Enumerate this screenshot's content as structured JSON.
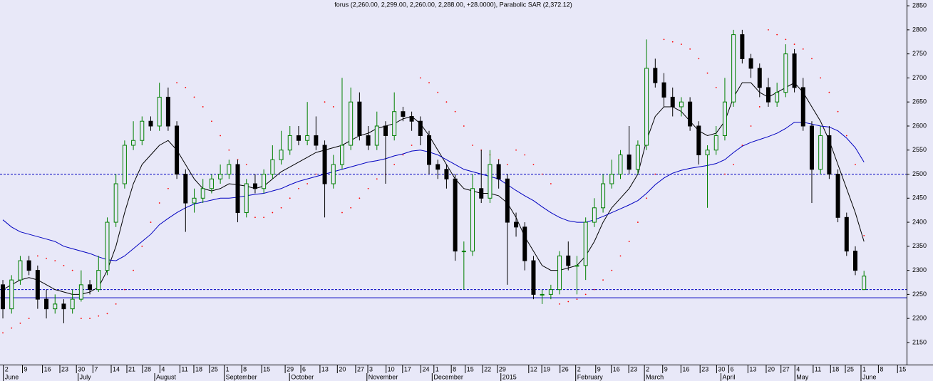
{
  "chart_data": {
    "type": "candlestick",
    "title": "forus (2,260.00, 2,299.00, 2,260.00, 2,288.00, +28.0000), Parabolic SAR (2,372.12)",
    "up_color": "#008000",
    "down_color": "#000000",
    "background": "#e8e8f8",
    "open": [
      2270,
      2220,
      2280,
      2320,
      2300,
      2240,
      2220,
      2230,
      2220,
      2240,
      2270,
      2260,
      2300,
      2400,
      2480,
      2560,
      2570,
      2610,
      2600,
      2660,
      2600,
      2500,
      2440,
      2450,
      2470,
      2490,
      2500,
      2520,
      2420,
      2480,
      2470,
      2500,
      2530,
      2550,
      2580,
      2570,
      2580,
      2560,
      2480,
      2520,
      2560,
      2650,
      2580,
      2560,
      2600,
      2580,
      2630,
      2620,
      2610,
      2580,
      2520,
      2510,
      2490,
      2340,
      2340,
      2470,
      2450,
      2520,
      2490,
      2400,
      2390,
      2320,
      2250,
      2250,
      2260,
      2330,
      2310,
      2310,
      2400,
      2430,
      2480,
      2500,
      2540,
      2510,
      2560,
      2720,
      2690,
      2660,
      2640,
      2650,
      2600,
      2540,
      2550,
      2580,
      2650,
      2790,
      2740,
      2720,
      2680,
      2650,
      2670,
      2750,
      2680,
      2600,
      2510,
      2580,
      2500,
      2410,
      2340,
      2260
    ],
    "high": [
      2280,
      2290,
      2330,
      2330,
      2310,
      2260,
      2250,
      2240,
      2260,
      2300,
      2280,
      2330,
      2410,
      2500,
      2570,
      2610,
      2620,
      2620,
      2690,
      2680,
      2610,
      2510,
      2470,
      2490,
      2500,
      2520,
      2530,
      2530,
      2490,
      2500,
      2510,
      2560,
      2590,
      2600,
      2600,
      2650,
      2620,
      2570,
      2540,
      2700,
      2680,
      2670,
      2600,
      2630,
      2610,
      2670,
      2640,
      2630,
      2620,
      2590,
      2530,
      2520,
      2500,
      2360,
      2500,
      2550,
      2550,
      2530,
      2500,
      2420,
      2400,
      2330,
      2260,
      2270,
      2340,
      2360,
      2330,
      2410,
      2450,
      2500,
      2530,
      2550,
      2600,
      2570,
      2780,
      2740,
      2710,
      2680,
      2660,
      2660,
      2610,
      2560,
      2600,
      2700,
      2800,
      2800,
      2750,
      2730,
      2700,
      2690,
      2770,
      2760,
      2700,
      2610,
      2600,
      2600,
      2510,
      2420,
      2350,
      2299
    ],
    "low": [
      2200,
      2210,
      2270,
      2290,
      2220,
      2200,
      2210,
      2190,
      2210,
      2235,
      2250,
      2255,
      2290,
      2390,
      2470,
      2550,
      2560,
      2590,
      2590,
      2590,
      2490,
      2380,
      2420,
      2440,
      2460,
      2480,
      2490,
      2400,
      2410,
      2460,
      2460,
      2490,
      2520,
      2540,
      2560,
      2560,
      2550,
      2410,
      2470,
      2510,
      2550,
      2570,
      2550,
      2550,
      2480,
      2570,
      2610,
      2590,
      2560,
      2500,
      2490,
      2470,
      2320,
      2260,
      2330,
      2440,
      2440,
      2470,
      2270,
      2370,
      2300,
      2240,
      2230,
      2240,
      2250,
      2300,
      2250,
      2280,
      2390,
      2420,
      2470,
      2490,
      2500,
      2500,
      2550,
      2680,
      2640,
      2620,
      2620,
      2590,
      2520,
      2430,
      2540,
      2570,
      2640,
      2730,
      2700,
      2660,
      2640,
      2640,
      2660,
      2670,
      2590,
      2440,
      2500,
      2490,
      2400,
      2330,
      2290,
      2260
    ],
    "close": [
      2220,
      2280,
      2320,
      2300,
      2240,
      2220,
      2230,
      2220,
      2240,
      2270,
      2260,
      2300,
      2400,
      2480,
      2560,
      2570,
      2610,
      2600,
      2660,
      2600,
      2500,
      2440,
      2450,
      2470,
      2490,
      2500,
      2520,
      2420,
      2480,
      2470,
      2500,
      2530,
      2550,
      2580,
      2570,
      2580,
      2560,
      2480,
      2520,
      2560,
      2650,
      2580,
      2560,
      2600,
      2580,
      2630,
      2620,
      2610,
      2580,
      2520,
      2510,
      2490,
      2340,
      2340,
      2470,
      2450,
      2520,
      2490,
      2400,
      2390,
      2320,
      2250,
      2250,
      2260,
      2330,
      2310,
      2310,
      2400,
      2430,
      2480,
      2500,
      2540,
      2510,
      2560,
      2720,
      2690,
      2660,
      2640,
      2650,
      2600,
      2540,
      2550,
      2580,
      2650,
      2790,
      2740,
      2720,
      2680,
      2650,
      2670,
      2750,
      2680,
      2600,
      2510,
      2580,
      2500,
      2410,
      2340,
      2300,
      2288
    ],
    "lines": [
      {
        "color": "#000000",
        "values": [
          2260,
          2270,
          2280,
          2285,
          2280,
          2270,
          2260,
          2255,
          2250,
          2250,
          2255,
          2265,
          2300,
          2350,
          2420,
          2480,
          2520,
          2540,
          2560,
          2570,
          2550,
          2520,
          2490,
          2470,
          2465,
          2470,
          2480,
          2478,
          2475,
          2470,
          2475,
          2490,
          2505,
          2515,
          2525,
          2535,
          2545,
          2550,
          2555,
          2560,
          2570,
          2580,
          2585,
          2595,
          2600,
          2605,
          2615,
          2620,
          2605,
          2580,
          2550,
          2520,
          2490,
          2470,
          2465,
          2460,
          2460,
          2455,
          2440,
          2410,
          2370,
          2340,
          2310,
          2300,
          2300,
          2305,
          2310,
          2330,
          2360,
          2400,
          2430,
          2450,
          2470,
          2500,
          2570,
          2620,
          2640,
          2640,
          2630,
          2610,
          2590,
          2580,
          2585,
          2610,
          2660,
          2690,
          2690,
          2670,
          2660,
          2670,
          2680,
          2690,
          2670,
          2640,
          2610,
          2570,
          2520,
          2470,
          2420,
          2360
        ]
      },
      {
        "color": "#0000c0",
        "values": [
          2405,
          2390,
          2380,
          2375,
          2370,
          2365,
          2360,
          2350,
          2345,
          2340,
          2335,
          2328,
          2322,
          2320,
          2330,
          2345,
          2360,
          2375,
          2395,
          2408,
          2420,
          2430,
          2438,
          2442,
          2446,
          2450,
          2450,
          2452,
          2455,
          2458,
          2460,
          2465,
          2470,
          2478,
          2485,
          2490,
          2495,
          2500,
          2505,
          2510,
          2515,
          2520,
          2525,
          2528,
          2532,
          2538,
          2542,
          2548,
          2550,
          2546,
          2540,
          2530,
          2520,
          2510,
          2505,
          2500,
          2495,
          2490,
          2478,
          2466,
          2455,
          2445,
          2432,
          2420,
          2410,
          2403,
          2400,
          2400,
          2405,
          2412,
          2420,
          2428,
          2436,
          2445,
          2460,
          2478,
          2492,
          2502,
          2508,
          2512,
          2515,
          2518,
          2522,
          2530,
          2545,
          2558,
          2566,
          2572,
          2578,
          2585,
          2595,
          2608,
          2608,
          2604,
          2600,
          2598,
          2590,
          2575,
          2555,
          2525
        ]
      }
    ],
    "sar": {
      "color": "#ff0000",
      "values": [
        2170,
        2180,
        2190,
        2200,
        2330,
        2325,
        2320,
        2310,
        2300,
        2200,
        2200,
        2205,
        2210,
        2230,
        2260,
        2300,
        2350,
        2400,
        2440,
        2470,
        2690,
        2680,
        2660,
        2640,
        2610,
        2580,
        2550,
        2530,
        2520,
        2410,
        2410,
        2420,
        2430,
        2450,
        2470,
        2480,
        2500,
        2650,
        2640,
        2420,
        2430,
        2450,
        2470,
        2490,
        2500,
        2520,
        2540,
        2560,
        2700,
        2690,
        2670,
        2650,
        2630,
        2600,
        2560,
        2550,
        2540,
        2530,
        2520,
        2550,
        2540,
        2520,
        2500,
        2480,
        2230,
        2235,
        2240,
        2250,
        2260,
        2280,
        2300,
        2330,
        2360,
        2400,
        2450,
        2500,
        2780,
        2775,
        2770,
        2760,
        2740,
        2710,
        2680,
        2500,
        2520,
        2560,
        2600,
        2640,
        2800,
        2790,
        2780,
        2770,
        2760,
        2740,
        2700,
        2670,
        2630,
        2580,
        2520,
        2372.12
      ]
    },
    "hlines": [
      {
        "value": 2500,
        "style": "dashed",
        "color": "#0000c0"
      },
      {
        "value": 2260,
        "style": "dashed",
        "color": "#0000c0"
      },
      {
        "value": 2243,
        "style": "solid",
        "color": "#0000c0"
      }
    ],
    "xlim": [
      -0.33,
      103.9
    ],
    "ylim": [
      2104,
      2862
    ],
    "yticks": [
      2150,
      2200,
      2250,
      2300,
      2350,
      2400,
      2450,
      2500,
      2550,
      2600,
      2650,
      2700,
      2750,
      2800,
      2850
    ],
    "xticks": [
      {
        "value": 0.3,
        "label": "2"
      },
      {
        "value": 2.5,
        "label": "9"
      },
      {
        "value": 4.8,
        "label": "16"
      },
      {
        "value": 6.8,
        "label": "23"
      },
      {
        "value": 8.7,
        "label": "30"
      },
      {
        "value": 10.6,
        "label": "7"
      },
      {
        "value": 12.7,
        "label": "14"
      },
      {
        "value": 14.5,
        "label": "21"
      },
      {
        "value": 16.3,
        "label": "28"
      },
      {
        "value": 18.3,
        "label": "4"
      },
      {
        "value": 20.6,
        "label": "11"
      },
      {
        "value": 22.2,
        "label": "18"
      },
      {
        "value": 24.0,
        "label": "25"
      },
      {
        "value": 25.7,
        "label": "1"
      },
      {
        "value": 27.7,
        "label": "8"
      },
      {
        "value": 30.0,
        "label": "15"
      },
      {
        "value": 32.7,
        "label": "29"
      },
      {
        "value": 34.5,
        "label": "6"
      },
      {
        "value": 36.7,
        "label": "13"
      },
      {
        "value": 38.7,
        "label": "20"
      },
      {
        "value": 40.8,
        "label": "27"
      },
      {
        "value": 42.2,
        "label": "3"
      },
      {
        "value": 44.3,
        "label": "10"
      },
      {
        "value": 46.2,
        "label": "17"
      },
      {
        "value": 48.3,
        "label": "24"
      },
      {
        "value": 49.8,
        "label": "1"
      },
      {
        "value": 51.8,
        "label": "8"
      },
      {
        "value": 53.4,
        "label": "15"
      },
      {
        "value": 55.4,
        "label": "22"
      },
      {
        "value": 57.1,
        "label": "29"
      },
      {
        "value": 60.7,
        "label": "12"
      },
      {
        "value": 62.2,
        "label": "19"
      },
      {
        "value": 64.3,
        "label": "26"
      },
      {
        "value": 66.1,
        "label": "2"
      },
      {
        "value": 68.4,
        "label": "9"
      },
      {
        "value": 70.2,
        "label": "16"
      },
      {
        "value": 72.2,
        "label": "23"
      },
      {
        "value": 74.0,
        "label": "2"
      },
      {
        "value": 76.1,
        "label": "9"
      },
      {
        "value": 78.2,
        "label": "16"
      },
      {
        "value": 80.4,
        "label": "23"
      },
      {
        "value": 82.3,
        "label": "30"
      },
      {
        "value": 83.7,
        "label": "6"
      },
      {
        "value": 85.9,
        "label": "13"
      },
      {
        "value": 88.0,
        "label": "20"
      },
      {
        "value": 89.7,
        "label": "27"
      },
      {
        "value": 91.3,
        "label": "4"
      },
      {
        "value": 93.4,
        "label": "11"
      },
      {
        "value": 95.4,
        "label": "18"
      },
      {
        "value": 97.1,
        "label": "25"
      },
      {
        "value": 98.9,
        "label": "1"
      },
      {
        "value": 100.9,
        "label": "8"
      },
      {
        "value": 103.1,
        "label": "15"
      }
    ],
    "month_labels": [
      {
        "value": 0.3,
        "label": "June"
      },
      {
        "value": 8.9,
        "label": "July"
      },
      {
        "value": 17.7,
        "label": "August"
      },
      {
        "value": 25.7,
        "label": "September"
      },
      {
        "value": 33.2,
        "label": "October"
      },
      {
        "value": 42.1,
        "label": "November"
      },
      {
        "value": 49.6,
        "label": "December"
      },
      {
        "value": 57.5,
        "label": "2015"
      },
      {
        "value": 66.1,
        "label": "February"
      },
      {
        "value": 74.0,
        "label": "March"
      },
      {
        "value": 82.8,
        "label": "April"
      },
      {
        "value": 91.3,
        "label": "May"
      },
      {
        "value": 98.9,
        "label": "June"
      }
    ]
  }
}
